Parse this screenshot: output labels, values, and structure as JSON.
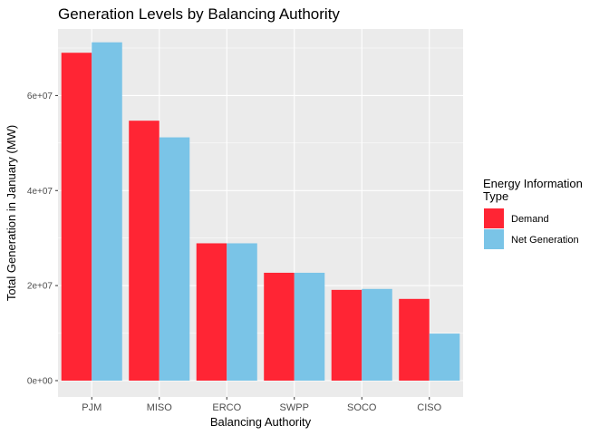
{
  "chart_data": {
    "type": "bar",
    "title": "Generation Levels by Balancing Authority",
    "xlabel": "Balancing Authority",
    "ylabel": "Total Generation in January (MW)",
    "categories": [
      "PJM",
      "MISO",
      "ERCO",
      "SWPP",
      "SOCO",
      "CISO"
    ],
    "series": [
      {
        "name": "Demand",
        "color": "#ff2534",
        "values": [
          69000000,
          54700000,
          28900000,
          22700000,
          19100000,
          17200000
        ]
      },
      {
        "name": "Net Generation",
        "color": "#7ac4e7",
        "values": [
          71200000,
          51200000,
          28900000,
          22700000,
          19300000,
          9900000
        ]
      }
    ],
    "ylim": [
      0,
      74000000
    ],
    "yticks": [
      {
        "value": 0,
        "label": "0e+00"
      },
      {
        "value": 20000000,
        "label": "2e+07"
      },
      {
        "value": 40000000,
        "label": "4e+07"
      },
      {
        "value": 60000000,
        "label": "6e+07"
      }
    ],
    "grid": true,
    "legend": {
      "title_line1": "Energy Information",
      "title_line2": "Type",
      "position": "right"
    }
  }
}
